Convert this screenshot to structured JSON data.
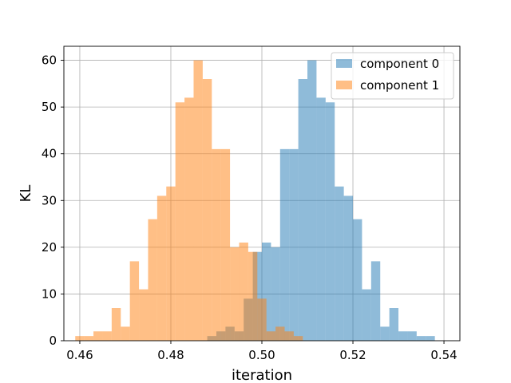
{
  "chart_data": {
    "type": "bar",
    "title": "",
    "xlabel": "iteration",
    "ylabel": "KL",
    "xlim": [
      0.4565,
      0.5435
    ],
    "ylim": [
      0,
      63
    ],
    "xticks": [
      0.46,
      0.48,
      0.5,
      0.52,
      0.54
    ],
    "xtick_labels": [
      "0.46",
      "0.48",
      "0.50",
      "0.52",
      "0.54"
    ],
    "yticks": [
      0,
      10,
      20,
      30,
      40,
      50,
      60
    ],
    "ytick_labels": [
      "0",
      "10",
      "20",
      "30",
      "40",
      "50",
      "60"
    ],
    "grid": true,
    "legend_position": "top-right",
    "series": [
      {
        "name": "component 0",
        "color": "#1f77b4",
        "alpha": 0.5,
        "bin_edges": [
          0.488,
          0.49,
          0.492,
          0.494,
          0.496,
          0.498,
          0.5,
          0.502,
          0.504,
          0.506,
          0.508,
          0.51,
          0.512,
          0.514,
          0.516,
          0.518,
          0.52,
          0.522,
          0.524,
          0.526,
          0.528,
          0.53,
          0.532,
          0.534,
          0.536,
          0.538,
          0.54,
          0.542
        ],
        "counts": [
          1,
          2,
          3,
          2,
          9,
          19,
          21,
          20,
          41,
          41,
          56,
          60,
          52,
          51,
          33,
          31,
          26,
          11,
          17,
          3,
          7,
          2,
          2,
          1,
          1,
          0,
          0
        ]
      },
      {
        "name": "component 1",
        "color": "#ff7f0e",
        "alpha": 0.5,
        "bin_edges": [
          0.459,
          0.461,
          0.463,
          0.465,
          0.467,
          0.469,
          0.471,
          0.473,
          0.475,
          0.477,
          0.479,
          0.481,
          0.483,
          0.485,
          0.487,
          0.489,
          0.491,
          0.493,
          0.495,
          0.497,
          0.499,
          0.501,
          0.503,
          0.505,
          0.507,
          0.509,
          0.511
        ],
        "counts": [
          1,
          1,
          2,
          2,
          7,
          3,
          17,
          11,
          26,
          31,
          33,
          51,
          52,
          60,
          56,
          41,
          41,
          20,
          21,
          19,
          9,
          2,
          3,
          2,
          1,
          0
        ]
      }
    ]
  }
}
